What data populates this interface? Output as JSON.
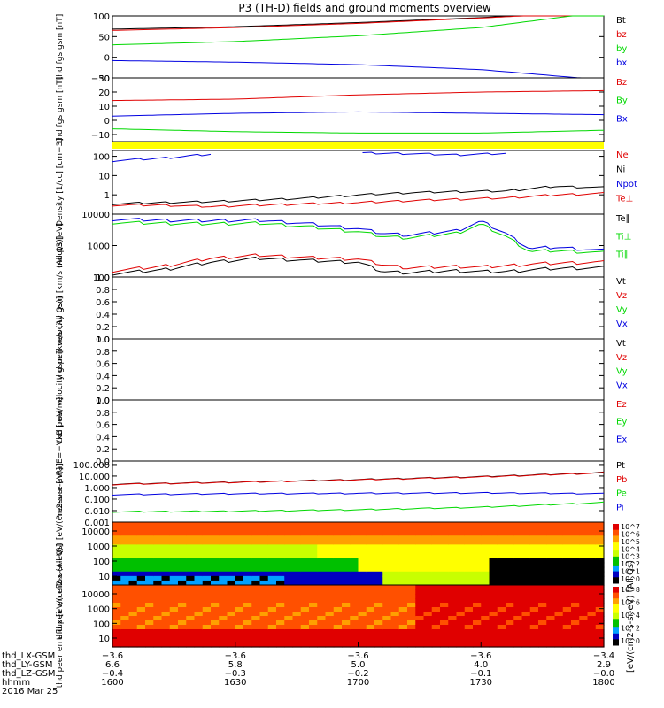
{
  "title": "P3 (TH-D) fields and ground moments overview",
  "colors": {
    "black": "#000000",
    "red": "#e00000",
    "green": "#00d800",
    "blue": "#0000e0",
    "yellow": "#ffff00"
  },
  "chart_data": [
    {
      "type": "line",
      "ylabel": "thd fgs gsm [nT]",
      "ylim": [
        -50,
        100
      ],
      "yticks": [
        {
          "v": 100,
          "t": "100"
        },
        {
          "v": 50,
          "t": "50"
        },
        {
          "v": 0,
          "t": "0"
        },
        {
          "v": -50,
          "t": "−50"
        }
      ],
      "legend": [
        {
          "name": "Bt",
          "color": "black"
        },
        {
          "name": "bz",
          "color": "red"
        },
        {
          "name": "by",
          "color": "green"
        },
        {
          "name": "bx",
          "color": "blue"
        }
      ],
      "x": [
        0,
        0.25,
        0.5,
        0.75,
        1
      ],
      "series": [
        {
          "name": "Bt",
          "color": "black",
          "values": [
            68,
            74,
            84,
            96,
            112
          ]
        },
        {
          "name": "bz",
          "color": "red",
          "values": [
            65,
            72,
            82,
            95,
            110
          ]
        },
        {
          "name": "by",
          "color": "green",
          "values": [
            30,
            38,
            52,
            72,
            110
          ]
        },
        {
          "name": "bx",
          "color": "blue",
          "values": [
            -8,
            -12,
            -18,
            -30,
            -55
          ]
        }
      ]
    },
    {
      "type": "line",
      "ylabel": "thd fgs gsm [nT]",
      "ylim": [
        -15,
        30
      ],
      "yticks": [
        {
          "v": 30,
          "t": "30"
        },
        {
          "v": 20,
          "t": "20"
        },
        {
          "v": 10,
          "t": "10"
        },
        {
          "v": 0,
          "t": "0"
        },
        {
          "v": -10,
          "t": "−10"
        }
      ],
      "legend": [
        {
          "name": "Bz",
          "color": "red"
        },
        {
          "name": "By",
          "color": "green"
        },
        {
          "name": "Bx",
          "color": "blue"
        }
      ],
      "x": [
        0,
        0.25,
        0.5,
        0.75,
        1
      ],
      "series": [
        {
          "name": "Bz",
          "color": "red",
          "values": [
            14,
            15,
            18,
            20,
            21
          ]
        },
        {
          "name": "By",
          "color": "green",
          "values": [
            -6,
            -8,
            -9,
            -9,
            -7
          ]
        },
        {
          "name": "Bx",
          "color": "blue",
          "values": [
            3,
            5,
            6,
            5,
            4
          ]
        }
      ]
    },
    {
      "type": "line",
      "log": true,
      "ylabel": "Density [1/cc] [cm−3]",
      "ylim": [
        0.1,
        200
      ],
      "yticks": [
        {
          "v": 100,
          "t": "100"
        },
        {
          "v": 10,
          "t": "10"
        },
        {
          "v": 1,
          "t": "1"
        }
      ],
      "legend": [
        {
          "name": "Ne",
          "color": "red"
        },
        {
          "name": "Ni",
          "color": "black"
        },
        {
          "name": "Npot",
          "color": "blue"
        },
        {
          "name": "Te⊥",
          "color": "red"
        }
      ],
      "x": [
        0,
        0.1,
        0.2,
        0.3,
        0.4,
        0.5,
        0.6,
        0.7,
        0.8,
        0.9,
        1
      ],
      "series": [
        {
          "name": "Ni",
          "color": "black",
          "values": [
            0.35,
            0.4,
            0.45,
            0.55,
            0.7,
            1.0,
            1.3,
            1.5,
            1.6,
            2.8,
            2.4
          ]
        },
        {
          "name": "Ne",
          "color": "red",
          "values": [
            0.3,
            0.3,
            0.25,
            0.3,
            0.35,
            0.4,
            0.5,
            0.6,
            0.7,
            1.0,
            1.2
          ]
        },
        {
          "name": "Npot",
          "color": "blue",
          "values": [
            60,
            80,
            130,
            null,
            null,
            150,
            140,
            120,
            140,
            null,
            null
          ]
        }
      ]
    },
    {
      "type": "line",
      "log": true,
      "ylabel": "moqt3 [eV]",
      "ylim": [
        100,
        10000
      ],
      "yticks": [
        {
          "v": 10000,
          "t": "10000"
        },
        {
          "v": 1000,
          "t": "1000"
        },
        {
          "v": 100,
          "t": "100"
        }
      ],
      "legend": [
        {
          "name": "Te∥",
          "color": "black"
        },
        {
          "name": "Ti⊥",
          "color": "green"
        },
        {
          "name": "Ti∥",
          "color": "green"
        }
      ],
      "x": [
        0,
        0.1,
        0.2,
        0.3,
        0.4,
        0.5,
        0.55,
        0.6,
        0.7,
        0.75,
        0.8,
        0.85,
        0.9,
        1
      ],
      "series": [
        {
          "name": "Ti⊥",
          "color": "blue",
          "values": [
            7000,
            6500,
            6300,
            6500,
            5000,
            3500,
            2500,
            2200,
            3000,
            6000,
            2500,
            800,
            900,
            700
          ]
        },
        {
          "name": "Ti∥",
          "color": "green",
          "values": [
            5500,
            5200,
            5000,
            5200,
            4000,
            2800,
            2000,
            1800,
            2500,
            4800,
            2000,
            650,
            700,
            600
          ]
        },
        {
          "name": "Te⊥",
          "color": "red",
          "values": [
            160,
            220,
            400,
            500,
            420,
            380,
            250,
            200,
            220,
            210,
            230,
            260,
            280,
            300
          ]
        },
        {
          "name": "Te∥",
          "color": "black",
          "values": [
            130,
            170,
            300,
            400,
            340,
            300,
            150,
            140,
            160,
            150,
            150,
            170,
            190,
            200
          ]
        }
      ]
    },
    {
      "type": "line",
      "ylabel": "thd peir velocity gsm [km/s (All Qs)]",
      "ylim": [
        0,
        1
      ],
      "yticks": [
        {
          "v": 1,
          "t": "1.0"
        },
        {
          "v": 0.8,
          "t": "0.8"
        },
        {
          "v": 0.6,
          "t": "0.6"
        },
        {
          "v": 0.4,
          "t": "0.4"
        },
        {
          "v": 0.2,
          "t": "0.2"
        },
        {
          "v": 0,
          "t": "0.0"
        }
      ],
      "legend": [
        {
          "name": "Vt",
          "color": "black"
        },
        {
          "name": "Vz",
          "color": "red"
        },
        {
          "name": "Vy",
          "color": "green"
        },
        {
          "name": "Vx",
          "color": "blue"
        }
      ],
      "series": []
    },
    {
      "type": "line",
      "ylabel": "thd peer velocity gsm [km/s (All Qs)]",
      "ylim": [
        0,
        1
      ],
      "yticks": [
        {
          "v": 1,
          "t": "1.0"
        },
        {
          "v": 0.8,
          "t": "0.8"
        },
        {
          "v": 0.6,
          "t": "0.6"
        },
        {
          "v": 0.4,
          "t": "0.4"
        },
        {
          "v": 0.2,
          "t": "0.2"
        },
        {
          "v": 0,
          "t": "0.0"
        }
      ],
      "legend": [
        {
          "name": "Vt",
          "color": "black"
        },
        {
          "name": "Vz",
          "color": "red"
        },
        {
          "name": "Vy",
          "color": "green"
        },
        {
          "name": "Vx",
          "color": "blue"
        }
      ],
      "series": []
    },
    {
      "type": "line",
      "ylabel": "E=−VxB [mV/m]",
      "ylim": [
        0,
        1
      ],
      "yticks": [
        {
          "v": 1,
          "t": "1.0"
        },
        {
          "v": 0.8,
          "t": "0.8"
        },
        {
          "v": 0.6,
          "t": "0.6"
        },
        {
          "v": 0.4,
          "t": "0.4"
        },
        {
          "v": 0.2,
          "t": "0.2"
        },
        {
          "v": 0,
          "t": "0.0"
        }
      ],
      "legend": [
        {
          "name": "Ez",
          "color": "red"
        },
        {
          "name": "Ey",
          "color": "green"
        },
        {
          "name": "Ex",
          "color": "blue"
        }
      ],
      "series": []
    },
    {
      "type": "line",
      "log": true,
      "ylabel": "Pressure [nPa]",
      "ylim": [
        0.001,
        200
      ],
      "yticks": [
        {
          "v": 100,
          "t": "100.000"
        },
        {
          "v": 10,
          "t": "10.000"
        },
        {
          "v": 1,
          "t": "1.000"
        },
        {
          "v": 0.1,
          "t": "0.100"
        },
        {
          "v": 0.01,
          "t": "0.010"
        },
        {
          "v": 0.001,
          "t": "0.001"
        }
      ],
      "legend": [
        {
          "name": "Pt",
          "color": "black"
        },
        {
          "name": "Pb",
          "color": "red"
        },
        {
          "name": "Pe",
          "color": "green"
        },
        {
          "name": "Pi",
          "color": "blue"
        }
      ],
      "x": [
        0,
        0.25,
        0.5,
        0.75,
        1
      ],
      "series": [
        {
          "name": "Pt",
          "color": "black",
          "values": [
            2.0,
            3.0,
            5.0,
            9.0,
            20.0
          ]
        },
        {
          "name": "Pb",
          "color": "red",
          "values": [
            1.9,
            2.9,
            4.8,
            8.5,
            19.0
          ]
        },
        {
          "name": "Pi",
          "color": "blue",
          "values": [
            0.25,
            0.3,
            0.32,
            0.35,
            0.3
          ]
        },
        {
          "name": "Pe",
          "color": "green",
          "values": [
            0.008,
            0.009,
            0.012,
            0.02,
            0.05
          ]
        }
      ]
    },
    {
      "type": "heatmap",
      "ylabel": "thd peir en eflux (All Qs) [eV/(cm2-s-sr-eV)]",
      "yticks": [
        {
          "t": "10000"
        },
        {
          "t": "1000"
        },
        {
          "t": "100"
        },
        {
          "t": "10"
        }
      ],
      "colorbar": [
        "10^7",
        "10^6",
        "10^5",
        "10^4",
        "10^3",
        "10^2",
        "10^1",
        "10^0"
      ]
    },
    {
      "type": "heatmap",
      "ylabel": "thd peer en eflux [eV/(cm2-s-sr-eV)]",
      "yticks": [
        {
          "t": "10000"
        },
        {
          "t": "1000"
        },
        {
          "t": "100"
        },
        {
          "t": "10"
        }
      ],
      "colorbar": [
        "10^8",
        "10^6",
        "10^4",
        "10^2",
        "10^0"
      ]
    }
  ],
  "colorbar_label": "[eV/(cm2-s-sr-eV) (All Qs)]",
  "xaxis": {
    "rows": [
      {
        "label": "thd_LX-GSM",
        "values": [
          "−3.6",
          "−3.6",
          "−3.6",
          "−3.6",
          "−3.4"
        ]
      },
      {
        "label": "thd_LY-GSM",
        "values": [
          "6.6",
          "5.8",
          "5.0",
          "4.0",
          "2.9"
        ]
      },
      {
        "label": "thd_LZ-GSM",
        "values": [
          "−0.4",
          "−0.3",
          "−0.2",
          "−0.1",
          "−0.0"
        ]
      },
      {
        "label": "hhmm",
        "values": [
          "1600",
          "1630",
          "1700",
          "1730",
          "1800"
        ]
      }
    ],
    "date": "2016 Mar 25"
  }
}
